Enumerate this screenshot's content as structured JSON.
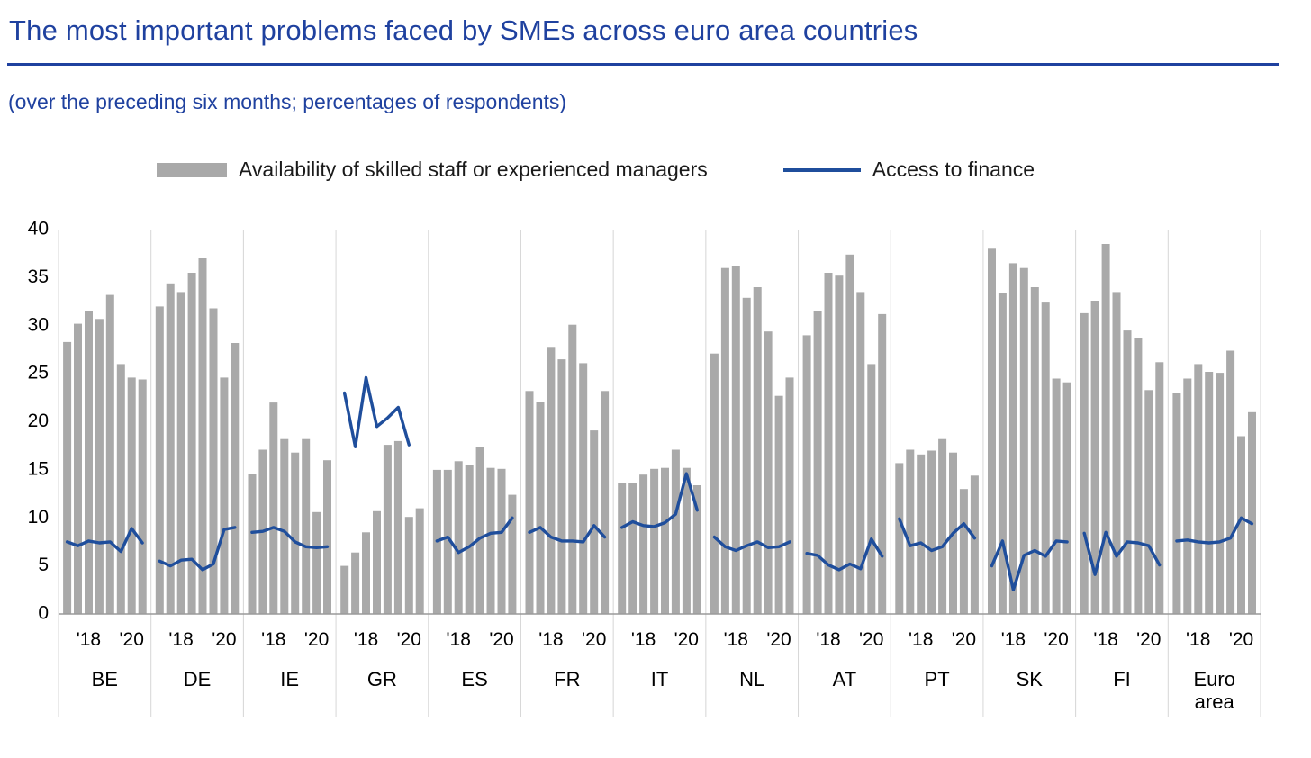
{
  "title": "The most important problems faced by SMEs across euro area countries",
  "subtitle": "(over the preceding six months; percentages of respondents)",
  "legend": {
    "bars": "Availability of skilled staff or experienced managers",
    "line": "Access to finance"
  },
  "colors": {
    "bar": "#a9a9a9",
    "line": "#1f4e9c",
    "title": "#1f419f",
    "grid": "#d6d6d6",
    "axis": "#9a9a9a",
    "text": "#000000"
  },
  "chart_data": {
    "type": "bar",
    "title": "The most important problems faced by SMEs across euro area countries",
    "subtitle": "(over the preceding six months; percentages of respondents)",
    "ylim": [
      0,
      40
    ],
    "yticks": [
      0,
      5,
      10,
      15,
      20,
      25,
      30,
      35,
      40
    ],
    "xtick_labels": [
      "'18",
      "'20"
    ],
    "series_names": [
      "Availability of skilled staff or experienced managers",
      "Access to finance"
    ],
    "legend_position": "top",
    "grid": "panel-separators-only",
    "groups": [
      {
        "label": "BE",
        "bars": [
          28.3,
          30.2,
          31.5,
          30.7,
          33.2,
          26.0,
          24.6,
          24.4
        ],
        "line": [
          7.5,
          7.1,
          7.6,
          7.4,
          7.5,
          6.5,
          8.9,
          7.4
        ]
      },
      {
        "label": "DE",
        "bars": [
          32.0,
          34.4,
          33.5,
          35.5,
          37.0,
          31.8,
          24.6,
          28.2
        ],
        "line": [
          5.5,
          5.0,
          5.6,
          5.7,
          4.6,
          5.2,
          8.8,
          9.0
        ]
      },
      {
        "label": "IE",
        "bars": [
          14.6,
          17.1,
          22.0,
          18.2,
          16.8,
          18.2,
          10.6,
          16.0
        ],
        "line": [
          8.5,
          8.6,
          9.0,
          8.6,
          7.5,
          7.0,
          6.9,
          7.0
        ]
      },
      {
        "label": "GR",
        "bars": [
          5.0,
          6.4,
          8.5,
          10.7,
          17.6,
          18.0,
          10.1,
          11.0
        ],
        "line": [
          23.0,
          17.4,
          24.6,
          19.5,
          20.4,
          21.5,
          17.6,
          null
        ]
      },
      {
        "label": "ES",
        "bars": [
          15.0,
          15.0,
          15.9,
          15.5,
          17.4,
          15.2,
          15.1,
          12.4
        ],
        "line": [
          7.6,
          8.0,
          6.4,
          7.0,
          7.9,
          8.4,
          8.5,
          10.0
        ]
      },
      {
        "label": "FR",
        "bars": [
          23.2,
          22.1,
          27.7,
          26.5,
          30.1,
          26.1,
          19.1,
          23.2
        ],
        "line": [
          8.5,
          9.0,
          8.0,
          7.6,
          7.6,
          7.5,
          9.2,
          8.0
        ]
      },
      {
        "label": "IT",
        "bars": [
          13.6,
          13.6,
          14.5,
          15.1,
          15.2,
          17.1,
          15.2,
          13.4
        ],
        "line": [
          9.0,
          9.6,
          9.2,
          9.1,
          9.5,
          10.4,
          14.6,
          10.8
        ]
      },
      {
        "label": "NL",
        "bars": [
          27.1,
          36.0,
          36.2,
          32.9,
          34.0,
          29.4,
          22.7,
          24.6
        ],
        "line": [
          8.0,
          7.0,
          6.6,
          7.1,
          7.5,
          6.9,
          7.0,
          7.5
        ]
      },
      {
        "label": "AT",
        "bars": [
          29.0,
          31.5,
          35.5,
          35.2,
          37.4,
          33.5,
          26.0,
          31.2
        ],
        "line": [
          6.3,
          6.1,
          5.1,
          4.6,
          5.2,
          4.7,
          7.8,
          6.0
        ]
      },
      {
        "label": "PT",
        "bars": [
          15.7,
          17.1,
          16.6,
          17.0,
          18.2,
          16.8,
          13.0,
          14.4
        ],
        "line": [
          9.9,
          7.1,
          7.4,
          6.6,
          7.0,
          8.4,
          9.4,
          7.9
        ]
      },
      {
        "label": "SK",
        "bars": [
          38.0,
          33.4,
          36.5,
          36.0,
          34.0,
          32.4,
          24.5,
          24.1
        ],
        "line": [
          5.0,
          7.6,
          2.5,
          6.1,
          6.6,
          6.0,
          7.6,
          7.5
        ]
      },
      {
        "label": "FI",
        "bars": [
          31.3,
          32.6,
          38.5,
          33.5,
          29.5,
          28.7,
          23.3,
          26.2
        ],
        "line": [
          8.4,
          4.1,
          8.5,
          6.0,
          7.5,
          7.4,
          7.1,
          5.1
        ]
      },
      {
        "label": "Euro area",
        "bars": [
          23.0,
          24.5,
          26.0,
          25.2,
          25.1,
          27.4,
          18.5,
          21.0
        ],
        "line": [
          7.6,
          7.7,
          7.5,
          7.4,
          7.5,
          7.9,
          10.0,
          9.4
        ]
      }
    ]
  }
}
